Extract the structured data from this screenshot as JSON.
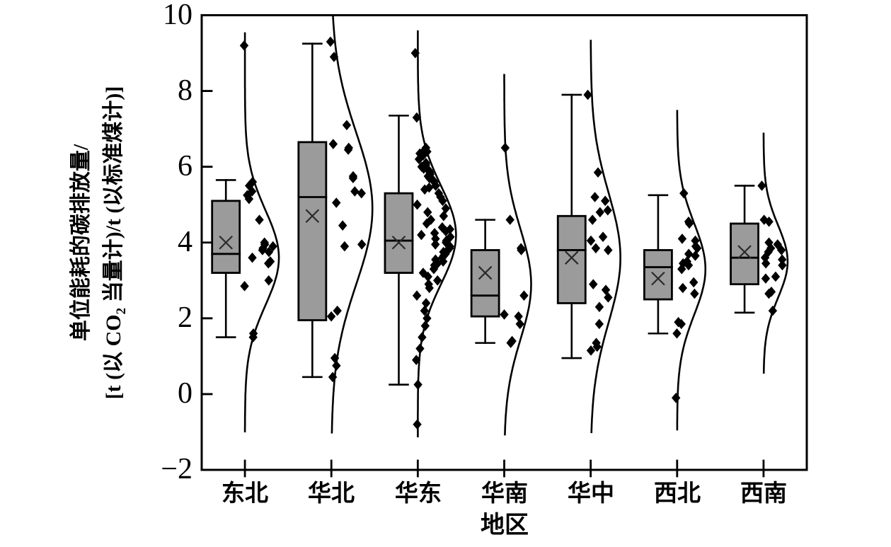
{
  "figure": {
    "y_axis": {
      "label_line1": "单位能耗的碳排放量/",
      "label_line2_pre": "[t (以 CO",
      "label_line2_sub": "2",
      "label_line2_post": " 当量计)/t (以标准煤计)]",
      "ticks": [
        "10",
        "8",
        "6",
        "4",
        "2",
        "0",
        "−2"
      ]
    },
    "x_axis": {
      "title": "地区"
    }
  },
  "colors": {
    "box_fill": "#9b9b9b",
    "stroke": "#000000",
    "mean_marker": "#2a2a2a",
    "background": "#ffffff"
  },
  "chart_data": {
    "type": "box+scatter+half-violin",
    "title": "",
    "xlabel": "地区",
    "ylabel": "单位能耗的碳排放量/[t (以 CO2 当量计)/t (以标准煤计)]",
    "ylim": [
      -2,
      10
    ],
    "y_ticks": [
      10,
      8,
      6,
      4,
      2,
      0,
      -2
    ],
    "grid": false,
    "legend": "none",
    "categories": [
      "东北",
      "华北",
      "华东",
      "华南",
      "华中",
      "西北",
      "西南"
    ],
    "series": [
      {
        "name": "东北",
        "box": {
          "whisker_low": 1.5,
          "q1": 3.2,
          "median": 3.7,
          "q3": 5.1,
          "whisker_high": 5.65
        },
        "mean": 4.0,
        "points": [
          9.2,
          5.6,
          5.5,
          5.35,
          5.25,
          5.15,
          4.6,
          4.0,
          3.95,
          3.9,
          3.85,
          3.8,
          3.75,
          3.6,
          3.5,
          3.45,
          3.0,
          2.85,
          1.6,
          1.5
        ],
        "curve": {
          "mode": 3.6,
          "sd": 1.25,
          "top": 9.55,
          "bottom": -1.05,
          "amp": 48
        }
      },
      {
        "name": "华北",
        "box": {
          "whisker_low": 0.45,
          "q1": 1.95,
          "median": 5.2,
          "q3": 6.65,
          "whisker_high": 9.25
        },
        "mean": 4.7,
        "points": [
          9.3,
          8.9,
          7.1,
          6.6,
          6.5,
          6.45,
          5.75,
          5.7,
          5.35,
          5.3,
          5.05,
          4.45,
          3.95,
          3.9,
          2.2,
          2.05,
          0.95,
          0.75,
          0.45
        ],
        "curve": {
          "mode": 4.9,
          "sd": 2.0,
          "top": 10.0,
          "bottom": -1.05,
          "amp": 58
        }
      },
      {
        "name": "华东",
        "box": {
          "whisker_low": 0.25,
          "q1": 3.2,
          "median": 4.05,
          "q3": 5.3,
          "whisker_high": 7.35
        },
        "mean": 4.0,
        "points": [
          9.0,
          7.3,
          6.5,
          6.45,
          6.4,
          6.35,
          6.3,
          6.2,
          6.1,
          6.05,
          6.0,
          5.95,
          5.9,
          5.85,
          5.8,
          5.75,
          5.7,
          5.65,
          5.6,
          5.5,
          5.45,
          5.4,
          5.3,
          5.2,
          5.1,
          5.0,
          4.9,
          4.8,
          4.7,
          4.6,
          4.5,
          4.4,
          4.35,
          4.3,
          4.25,
          4.2,
          4.15,
          4.1,
          4.05,
          4.0,
          3.95,
          3.9,
          3.85,
          3.8,
          3.75,
          3.7,
          3.65,
          3.6,
          3.55,
          3.5,
          3.45,
          3.4,
          3.3,
          3.2,
          3.1,
          3.0,
          2.9,
          2.8,
          2.6,
          2.4,
          2.2,
          2.0,
          1.8,
          1.5,
          1.2,
          0.9,
          0.25,
          -0.8
        ],
        "curve": {
          "mode": 4.2,
          "sd": 1.3,
          "top": 9.6,
          "bottom": -1.15,
          "amp": 54
        }
      },
      {
        "name": "华南",
        "box": {
          "whisker_low": 1.35,
          "q1": 2.05,
          "median": 2.6,
          "q3": 3.8,
          "whisker_high": 4.6
        },
        "mean": 3.2,
        "points": [
          6.5,
          4.6,
          3.85,
          3.8,
          2.6,
          2.1,
          2.05,
          1.85,
          1.4,
          1.35
        ],
        "curve": {
          "mode": 2.9,
          "sd": 1.45,
          "top": 8.45,
          "bottom": -1.1,
          "amp": 38
        }
      },
      {
        "name": "华中",
        "box": {
          "whisker_low": 0.95,
          "q1": 2.4,
          "median": 3.8,
          "q3": 4.7,
          "whisker_high": 7.9
        },
        "mean": 3.6,
        "points": [
          7.9,
          5.85,
          5.2,
          5.1,
          4.85,
          4.8,
          4.6,
          4.15,
          4.05,
          3.85,
          3.8,
          2.9,
          2.75,
          2.55,
          2.3,
          1.85,
          1.35,
          1.25,
          1.15
        ],
        "curve": {
          "mode": 3.6,
          "sd": 1.7,
          "top": 9.35,
          "bottom": -1.05,
          "amp": 42
        }
      },
      {
        "name": "西北",
        "box": {
          "whisker_low": 1.6,
          "q1": 2.5,
          "median": 3.35,
          "q3": 3.8,
          "whisker_high": 5.25
        },
        "mean": 3.05,
        "points": [
          5.3,
          4.55,
          4.5,
          4.1,
          4.05,
          3.9,
          3.85,
          3.7,
          3.65,
          3.5,
          3.45,
          3.4,
          3.3,
          2.95,
          2.8,
          2.65,
          1.9,
          1.85,
          1.6,
          -0.1
        ],
        "curve": {
          "mode": 3.3,
          "sd": 1.2,
          "top": 7.5,
          "bottom": -1.0,
          "amp": 40
        }
      },
      {
        "name": "西南",
        "box": {
          "whisker_low": 2.15,
          "q1": 2.9,
          "median": 3.6,
          "q3": 4.5,
          "whisker_high": 5.5
        },
        "mean": 3.75,
        "points": [
          5.5,
          4.6,
          4.55,
          4.0,
          3.95,
          3.85,
          3.8,
          3.75,
          3.6,
          3.55,
          3.45,
          3.4,
          3.1,
          3.05,
          2.7,
          2.65,
          2.2
        ],
        "curve": {
          "mode": 3.5,
          "sd": 0.95,
          "top": 6.9,
          "bottom": 0.5,
          "amp": 34
        }
      }
    ]
  }
}
